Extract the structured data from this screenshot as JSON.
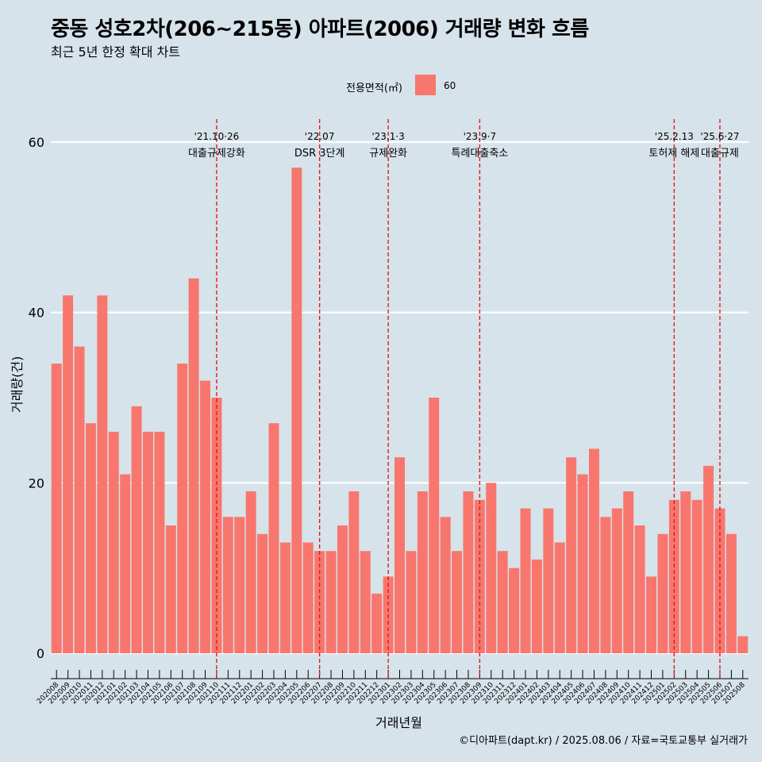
{
  "title": "중동 성호2차(206~215동) 아파트(2006) 거래량 변화 흐름",
  "subtitle": "최근 5년 한정 확대 차트",
  "legend": {
    "title": "전용면적(㎡)",
    "label": "60"
  },
  "caption": "©디아파트(dapt.kr) / 2025.08.06 / 자료=국토교통부 실거래가",
  "chart_data": {
    "type": "bar",
    "xlabel": "거래년월",
    "ylabel": "거래량(건)",
    "ylim": [
      0,
      60
    ],
    "yticks": [
      0,
      20,
      40,
      60
    ],
    "grid": true,
    "legend_position": "top",
    "bar_color": "#f8766d",
    "categories": [
      "202008",
      "202009",
      "202010",
      "202011",
      "202012",
      "202101",
      "202102",
      "202103",
      "202104",
      "202105",
      "202106",
      "202107",
      "202108",
      "202109",
      "202110",
      "202111",
      "202112",
      "202201",
      "202202",
      "202203",
      "202204",
      "202205",
      "202206",
      "202207",
      "202208",
      "202209",
      "202210",
      "202211",
      "202212",
      "202301",
      "202302",
      "202303",
      "202304",
      "202305",
      "202306",
      "202307",
      "202308",
      "202309",
      "202310",
      "202311",
      "202312",
      "202401",
      "202402",
      "202403",
      "202404",
      "202405",
      "202406",
      "202407",
      "202408",
      "202409",
      "202410",
      "202411",
      "202412",
      "202501",
      "202502",
      "202503",
      "202504",
      "202505",
      "202506",
      "202507",
      "202508"
    ],
    "series": [
      {
        "name": "60",
        "values": [
          34,
          42,
          36,
          27,
          42,
          26,
          21,
          29,
          26,
          26,
          15,
          34,
          44,
          32,
          30,
          16,
          16,
          19,
          14,
          27,
          13,
          57,
          13,
          12,
          12,
          15,
          19,
          12,
          7,
          9,
          23,
          12,
          19,
          30,
          16,
          12,
          19,
          18,
          20,
          12,
          10,
          17,
          11,
          17,
          13,
          23,
          21,
          24,
          16,
          17,
          19,
          15,
          9,
          14,
          18,
          19,
          18,
          22,
          17,
          14,
          2
        ]
      }
    ],
    "annotations": [
      {
        "date": "'21.10·26",
        "label": "대출규제강화",
        "x": "202110"
      },
      {
        "date": "'22.07",
        "label": "DSR 3단계",
        "x": "202207"
      },
      {
        "date": "'23.1·3",
        "label": "규제완화",
        "x": "202301"
      },
      {
        "date": "'23.9·7",
        "label": "특례대출축소",
        "x": "202309"
      },
      {
        "date": "'25.2.13",
        "label": "토허제 해제",
        "x": "202502"
      },
      {
        "date": "'25.6·27",
        "label": "대출규제",
        "x": "202506"
      }
    ]
  }
}
